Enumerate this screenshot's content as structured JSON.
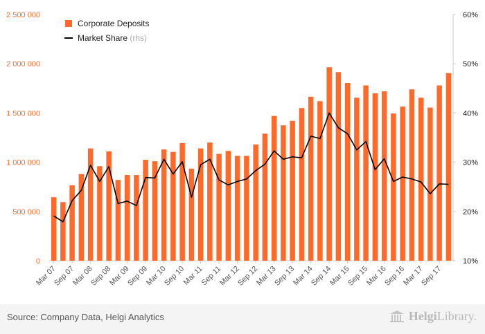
{
  "chart_data": {
    "type": "bar+line",
    "categories": [
      "Mar 07",
      "Jun 07",
      "Sep 07",
      "Dec 07",
      "Mar 08",
      "Jun 08",
      "Sep 08",
      "Dec 08",
      "Mar 09",
      "Jun 09",
      "Sep 09",
      "Dec 09",
      "Mar 10",
      "Jun 10",
      "Sep 10",
      "Dec 10",
      "Mar 11",
      "Jun 11",
      "Sep 11",
      "Dec 11",
      "Mar 12",
      "Jun 12",
      "Sep 12",
      "Dec 12",
      "Mar 13",
      "Jun 13",
      "Sep 13",
      "Dec 13",
      "Mar 14",
      "Jun 14",
      "Sep 14",
      "Dec 14",
      "Mar 15",
      "Jun 15",
      "Sep 15",
      "Dec 15",
      "Mar 16",
      "Jun 16",
      "Sep 16",
      "Dec 16",
      "Mar 17",
      "Jun 17",
      "Sep 17",
      "Dec 17"
    ],
    "tick_labels": [
      "Mar 07",
      "Sep 07",
      "Mar 08",
      "Sep 08",
      "Mar 09",
      "Sep 09",
      "Mar 10",
      "Sep 10",
      "Mar 11",
      "Sep 11",
      "Mar 12",
      "Sep 12",
      "Mar 13",
      "Sep 13",
      "Mar 14",
      "Sep 14",
      "Mar 15",
      "Sep 15",
      "Mar 16",
      "Sep 16",
      "Mar 17",
      "Sep 17"
    ],
    "series": [
      {
        "name": "Corporate Deposits",
        "kind": "bar",
        "axis": "left",
        "color": "#ff6a2a",
        "values": [
          645000,
          595000,
          765000,
          880000,
          1140000,
          960000,
          1110000,
          820000,
          870000,
          870000,
          1025000,
          1010000,
          1130000,
          1105000,
          1195000,
          935000,
          1140000,
          1200000,
          1085000,
          1115000,
          1065000,
          1065000,
          1180000,
          1290000,
          1470000,
          1375000,
          1420000,
          1550000,
          1665000,
          1620000,
          1965000,
          1915000,
          1805000,
          1655000,
          1780000,
          1700000,
          1720000,
          1495000,
          1565000,
          1740000,
          1655000,
          1555000,
          1780000,
          1905000
        ]
      },
      {
        "name": "Market Share",
        "legend_suffix": "(rhs)",
        "kind": "line",
        "axis": "right",
        "color": "#000000",
        "values": [
          19.1,
          17.9,
          22.2,
          24.3,
          29.4,
          26.1,
          29.1,
          21.6,
          22.1,
          21.2,
          26.9,
          26.8,
          30.6,
          27.6,
          30.1,
          22.9,
          29.5,
          30.6,
          26.4,
          25.4,
          26.1,
          26.6,
          28.3,
          29.6,
          32.3,
          30.6,
          31.1,
          30.9,
          35.3,
          34.8,
          40.0,
          37.0,
          35.8,
          32.5,
          34.2,
          28.5,
          30.7,
          26.1,
          27.0,
          26.6,
          26.0,
          23.6,
          25.6,
          25.5
        ]
      }
    ],
    "y_left": {
      "min": 0,
      "max": 2500000,
      "ticks": [
        "0",
        "500 000",
        "1 000 000",
        "1 500 000",
        "2 000 000",
        "2 500 000"
      ],
      "tick_values": [
        0,
        500000,
        1000000,
        1500000,
        2000000,
        2500000
      ],
      "color": "#ff6a2a"
    },
    "y_right": {
      "min": 10,
      "max": 60,
      "ticks": [
        "10%",
        "20%",
        "30%",
        "40%",
        "50%",
        "60%"
      ],
      "tick_values": [
        10,
        20,
        30,
        40,
        50,
        60
      ]
    },
    "legend_placement": "top-left",
    "grid": false
  },
  "footer": {
    "source": "Source: Company Data, Helgi Analytics",
    "logo_bold": "Helgi",
    "logo_rest": "Library."
  }
}
